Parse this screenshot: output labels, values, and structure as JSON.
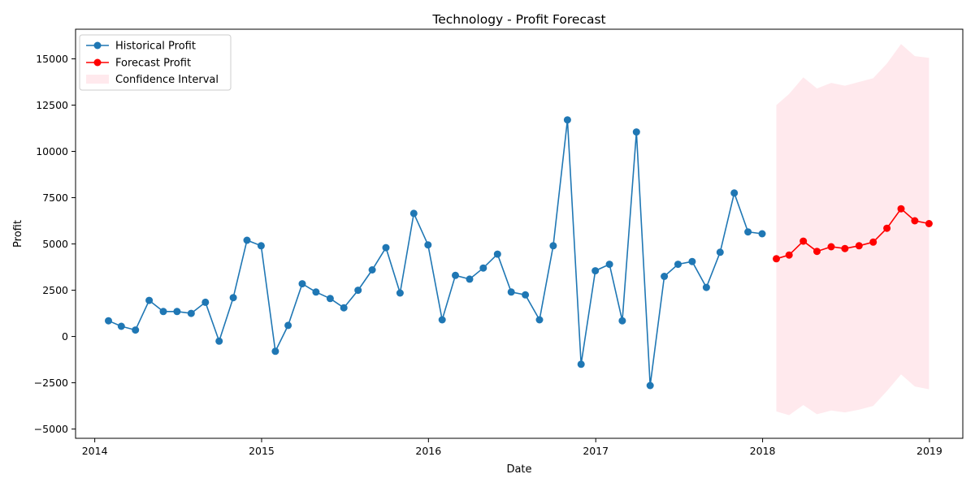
{
  "chart_data": {
    "type": "line",
    "title": "Technology - Profit Forecast",
    "xlabel": "Date",
    "ylabel": "Profit",
    "xlim": [
      "2013-11-20",
      "2019-03-15"
    ],
    "ylim": [
      -5500,
      16600
    ],
    "x_ticks": [
      "2014",
      "2015",
      "2016",
      "2017",
      "2018",
      "2019"
    ],
    "y_ticks": [
      -5000,
      -2500,
      0,
      2500,
      5000,
      7500,
      10000,
      12500,
      15000
    ],
    "grid": false,
    "legend_position": "top-left",
    "series": [
      {
        "name": "Historical Profit",
        "color": "#1f77b4",
        "marker": "circle",
        "x": [
          "2014-01-31",
          "2014-02-28",
          "2014-03-31",
          "2014-04-30",
          "2014-05-31",
          "2014-06-30",
          "2014-07-31",
          "2014-08-31",
          "2014-09-30",
          "2014-10-31",
          "2014-11-30",
          "2014-12-31",
          "2015-01-31",
          "2015-02-28",
          "2015-03-31",
          "2015-04-30",
          "2015-05-31",
          "2015-06-30",
          "2015-07-31",
          "2015-08-31",
          "2015-09-30",
          "2015-10-31",
          "2015-11-30",
          "2015-12-31",
          "2016-01-31",
          "2016-02-29",
          "2016-03-31",
          "2016-04-30",
          "2016-05-31",
          "2016-06-30",
          "2016-07-31",
          "2016-08-31",
          "2016-09-30",
          "2016-10-31",
          "2016-11-30",
          "2016-12-31",
          "2017-01-31",
          "2017-02-28",
          "2017-03-31",
          "2017-04-30",
          "2017-05-31",
          "2017-06-30",
          "2017-07-31",
          "2017-08-31",
          "2017-09-30",
          "2017-10-31",
          "2017-11-30",
          "2017-12-31"
        ],
        "y": [
          850,
          550,
          350,
          1950,
          1350,
          1350,
          1250,
          1850,
          -250,
          2100,
          5200,
          4900,
          -800,
          600,
          2850,
          2400,
          2050,
          1550,
          2500,
          3600,
          4800,
          2350,
          6650,
          4950,
          900,
          3300,
          3100,
          3700,
          4450,
          2400,
          2250,
          900,
          4900,
          11700,
          -1500,
          3550,
          3900,
          850,
          11050,
          -2650,
          3250,
          3900,
          4050,
          2650,
          4550,
          7750,
          5650,
          5550
        ]
      },
      {
        "name": "Forecast Profit",
        "color": "#ff0000",
        "marker": "circle",
        "x": [
          "2018-01-31",
          "2018-02-28",
          "2018-03-31",
          "2018-04-30",
          "2018-05-31",
          "2018-06-30",
          "2018-07-31",
          "2018-08-31",
          "2018-09-30",
          "2018-10-31",
          "2018-11-30",
          "2018-12-31"
        ],
        "y": [
          4200,
          4400,
          5150,
          4600,
          4850,
          4750,
          4900,
          5100,
          5850,
          6900,
          6250,
          6100
        ]
      }
    ],
    "confidence_interval": {
      "name": "Confidence Interval",
      "color": "#ffc0cb",
      "x": [
        "2018-01-31",
        "2018-02-28",
        "2018-03-31",
        "2018-04-30",
        "2018-05-31",
        "2018-06-30",
        "2018-07-31",
        "2018-08-31",
        "2018-09-30",
        "2018-10-31",
        "2018-11-30",
        "2018-12-31"
      ],
      "lower": [
        -4050,
        -4250,
        -3700,
        -4200,
        -4000,
        -4100,
        -3950,
        -3750,
        -2950,
        -2050,
        -2700,
        -2850
      ],
      "upper": [
        12500,
        13100,
        14000,
        13400,
        13700,
        13550,
        13750,
        13950,
        14750,
        15800,
        15150,
        15050
      ]
    }
  }
}
